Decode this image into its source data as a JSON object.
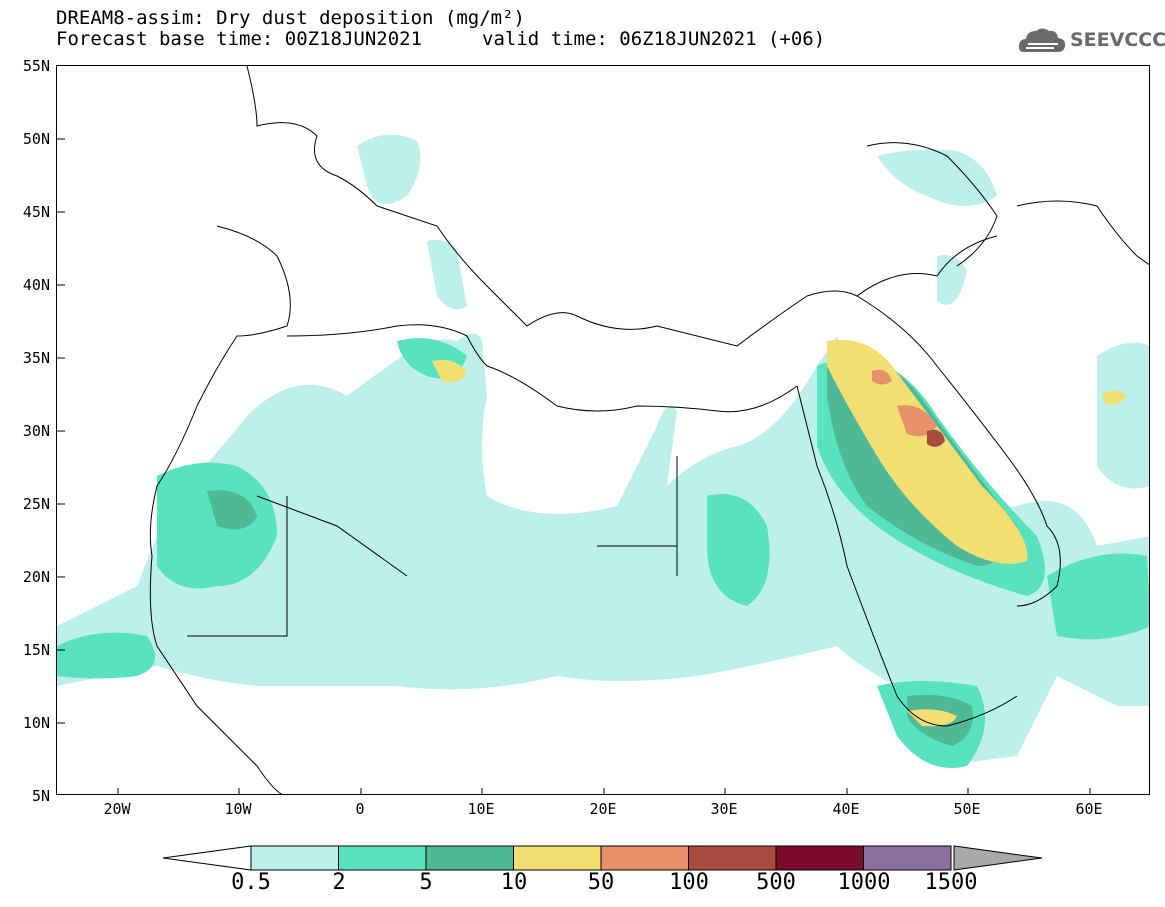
{
  "header": {
    "title_line1": "DREAM8-assim: Dry dust deposition (mg/m²)",
    "title_line2": "Forecast base time: 00Z18JUN2021",
    "valid_time": "valid time: 06Z18JUN2021 (+06)",
    "logo_text": "SEEVCCC",
    "logo_icon": "cloud-logo-icon"
  },
  "map": {
    "lat_range": [
      5,
      55
    ],
    "lon_range": [
      -25,
      65
    ],
    "lat_labels": [
      "55N",
      "50N",
      "45N",
      "40N",
      "35N",
      "30N",
      "25N",
      "20N",
      "15N",
      "10N",
      "5N"
    ],
    "lon_labels": [
      "20W",
      "10W",
      "0",
      "10E",
      "20E",
      "30E",
      "40E",
      "50E",
      "60E"
    ]
  },
  "legend": {
    "labels": [
      "0.5",
      "2",
      "5",
      "10",
      "50",
      "100",
      "500",
      "1000",
      "1500"
    ],
    "colors": [
      "#bdf0ea",
      "#58e2bf",
      "#4fb996",
      "#f2df72",
      "#e7916b",
      "#a84b3e",
      "#7c0b2b",
      "#8d6fa0",
      "#a9a9a9"
    ]
  }
}
